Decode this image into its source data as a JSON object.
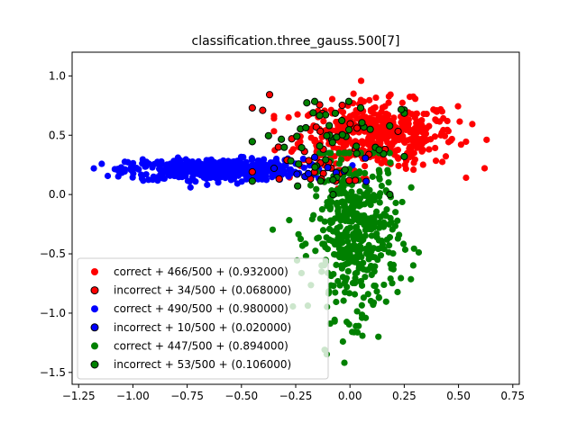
{
  "chart_data": {
    "type": "scatter",
    "title": "classification.three_gauss.500[7]",
    "xlabel": "",
    "ylabel": "",
    "xlim": [
      -1.28,
      0.78
    ],
    "ylim": [
      -1.6,
      1.2
    ],
    "x_ticks": [
      -1.25,
      -1.0,
      -0.75,
      -0.5,
      -0.25,
      0.0,
      0.25,
      0.5,
      0.75
    ],
    "x_tick_labels": [
      "−1.25",
      "−1.00",
      "−0.75",
      "−0.50",
      "−0.25",
      "0.00",
      "0.25",
      "0.50",
      "0.75"
    ],
    "y_ticks": [
      -1.5,
      -1.0,
      -0.5,
      0.0,
      0.5,
      1.0
    ],
    "y_tick_labels": [
      "−1.5",
      "−1.0",
      "−0.5",
      "0.0",
      "0.5",
      "1.0"
    ],
    "grid": false,
    "legend_position": "lower-left",
    "classes": [
      {
        "color": "#ff0000",
        "correct_label": "correct + 466/500 + (0.932000)",
        "incorrect_label": "incorrect + 34/500 + (0.068000)",
        "correct": 466,
        "incorrect": 34,
        "total": 500,
        "center": [
          0.13,
          0.5
        ],
        "spread": [
          0.18,
          0.14
        ],
        "range_x": [
          -0.35,
          0.7
        ],
        "range_y": [
          0.05,
          1.08
        ]
      },
      {
        "color": "#0000ff",
        "correct_label": "correct + 490/500 + (0.980000)",
        "incorrect_label": "incorrect + 10/500 + (0.020000)",
        "correct": 490,
        "incorrect": 10,
        "total": 500,
        "center": [
          -0.62,
          0.21
        ],
        "spread": [
          0.2,
          0.045
        ],
        "range_x": [
          -1.18,
          0.05
        ],
        "range_y": [
          0.06,
          0.35
        ]
      },
      {
        "color": "#008000",
        "correct_label": "correct + 447/500 + (0.894000)",
        "incorrect_label": "incorrect + 53/500 + (0.106000)",
        "correct": 447,
        "incorrect": 53,
        "total": 500,
        "center": [
          0.02,
          -0.35
        ],
        "spread": [
          0.1,
          0.34
        ],
        "range_x": [
          -0.45,
          0.52
        ],
        "range_y": [
          -1.48,
          0.35
        ]
      }
    ],
    "misclassified_center": [
      -0.1,
      0.45
    ],
    "misclassified_spread": [
      0.17,
      0.22
    ],
    "edge_color": "#000000"
  }
}
